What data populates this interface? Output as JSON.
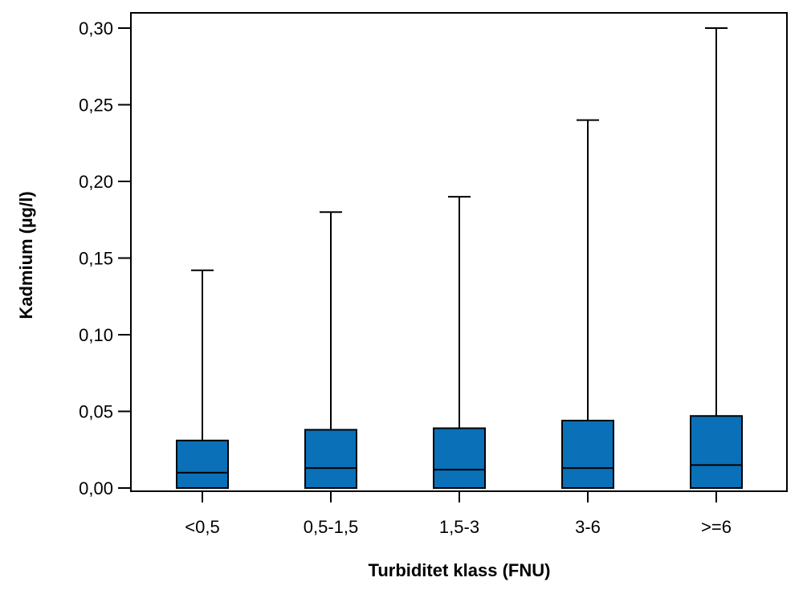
{
  "chart_data": {
    "type": "box",
    "title": "",
    "xlabel": "Turbiditet klass (FNU)",
    "ylabel": "Kadmium (µg/l)",
    "ylim": [
      0,
      0.3
    ],
    "yticks": [
      "0,00",
      "0,05",
      "0,10",
      "0,15",
      "0,20",
      "0,25",
      "0,30"
    ],
    "categories": [
      "<0,5",
      "0,5-1,5",
      "1,5-3",
      "3-6",
      ">=6"
    ],
    "boxes": [
      {
        "min": 0.0,
        "q1": 0.0,
        "median": 0.01,
        "q3": 0.031,
        "max": 0.142
      },
      {
        "min": 0.0,
        "q1": 0.0,
        "median": 0.013,
        "q3": 0.038,
        "max": 0.18
      },
      {
        "min": 0.0,
        "q1": 0.0,
        "median": 0.012,
        "q3": 0.039,
        "max": 0.19
      },
      {
        "min": 0.0,
        "q1": 0.0,
        "median": 0.013,
        "q3": 0.044,
        "max": 0.24
      },
      {
        "min": 0.0,
        "q1": 0.0,
        "median": 0.015,
        "q3": 0.047,
        "max": 0.3
      }
    ],
    "box_color": "#0a70b8",
    "grid": false,
    "legend": "none"
  }
}
